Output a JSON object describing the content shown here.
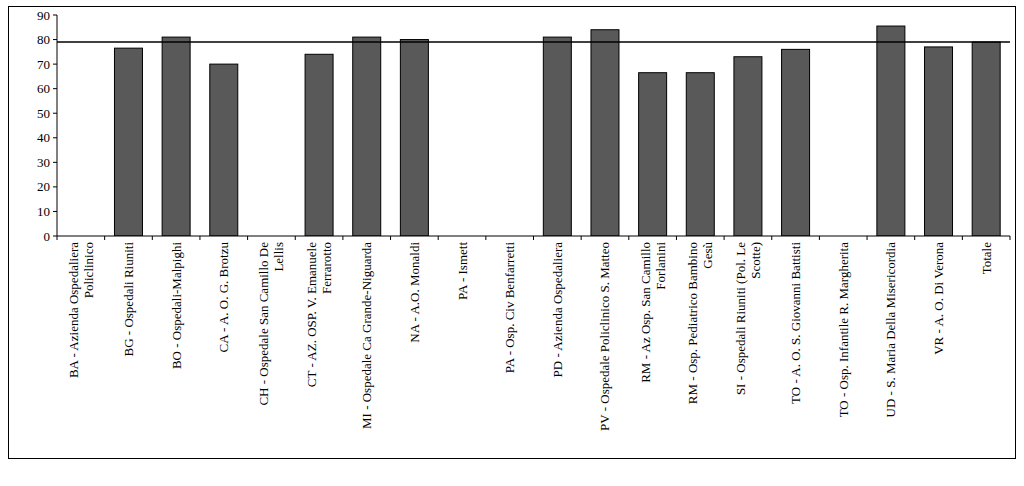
{
  "chart_data": {
    "type": "bar",
    "categories": [
      "BA - Azienda Ospedaliera Policlinico",
      "BG - Ospedali Riuniti",
      "BO - Ospedali-Malpighi",
      "CA - A. O. G. Brotzu",
      "CH - Ospedale San Camillo De Lellis",
      "CT - AZ. OSP. V. Emanuele Ferrarotto",
      "MI - Ospedale Ca Grande-Niguarda",
      "NA - A.O. Monaldi",
      "PA - Ismett",
      "PA - Osp. Civ Benfarretti",
      "PD - Azienda Ospedaliera",
      "PV - Ospedale Policlinico S. Matteo",
      "RM - Az Osp. San Camillo Forlanini",
      "RM - Osp. Pediatrico Bambino Gesù",
      "SI - Ospedali Riuniti (Pol. Le Scotte)",
      "TO - A. O. S. Giovanni Battisti",
      "TO - Osp. Infantile R. Margherita",
      "UD - S. Maria Della Misericordia",
      "VR - A. O. Di Verona",
      "Totale"
    ],
    "values": [
      0,
      76.5,
      81,
      70,
      0,
      74,
      81,
      80,
      0,
      0,
      81,
      84,
      66.5,
      66.5,
      73,
      76,
      0,
      85.5,
      77,
      79
    ],
    "color": "#595959",
    "ylim": [
      0,
      90
    ],
    "yticks": [
      0,
      10,
      20,
      30,
      40,
      50,
      60,
      70,
      80,
      90
    ],
    "grid": false
  }
}
